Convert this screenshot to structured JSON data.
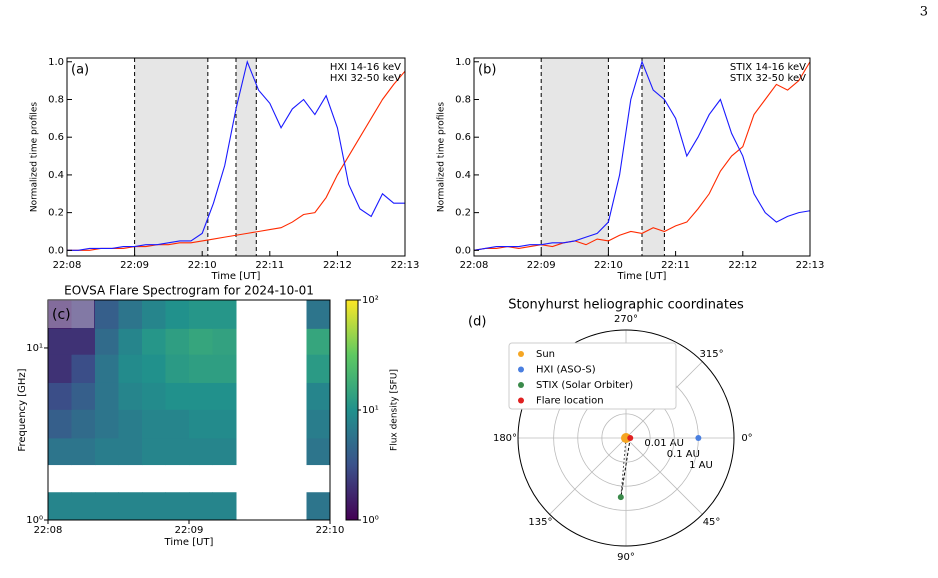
{
  "page_number": "3",
  "chart_data": [
    {
      "type": "line",
      "panel_label": "(a)",
      "x": [
        "22:08:00",
        "22:08:10",
        "22:08:20",
        "22:08:30",
        "22:08:40",
        "22:08:50",
        "22:09:00",
        "22:09:10",
        "22:09:20",
        "22:09:30",
        "22:09:40",
        "22:09:50",
        "22:10:00",
        "22:10:10",
        "22:10:20",
        "22:10:30",
        "22:10:40",
        "22:10:50",
        "22:11:00",
        "22:11:10",
        "22:11:20",
        "22:11:30",
        "22:11:40",
        "22:11:50",
        "22:12:00",
        "22:12:10",
        "22:12:20",
        "22:12:30",
        "22:12:40",
        "22:12:50",
        "22:13:00"
      ],
      "xlim": [
        "22:08",
        "22:13"
      ],
      "xticks": [
        "22:08",
        "22:09",
        "22:10",
        "22:11",
        "22:12",
        "22:13"
      ],
      "ylim": [
        -0.03,
        1.02
      ],
      "yticks": [
        {
          "value": 0,
          "label": "0.0"
        },
        0.2,
        0.4,
        0.6,
        0.8,
        {
          "value": 1,
          "label": "1.0"
        }
      ],
      "xlabel": "Time [UT]",
      "ylabel": "Normalized time profiles",
      "shaded_spans": [
        [
          "22:09:00",
          "22:10:05"
        ],
        [
          "22:10:30",
          "22:10:48"
        ]
      ],
      "series": [
        {
          "name": "HXI 14-16 keV",
          "color": "#ff2a00",
          "values": [
            0,
            0,
            0,
            0.01,
            0.01,
            0.01,
            0.02,
            0.02,
            0.03,
            0.03,
            0.04,
            0.04,
            0.05,
            0.06,
            0.07,
            0.08,
            0.09,
            0.1,
            0.11,
            0.12,
            0.15,
            0.19,
            0.2,
            0.28,
            0.4,
            0.5,
            0.6,
            0.7,
            0.8,
            0.88,
            0.95
          ]
        },
        {
          "name": "HXI 32-50 keV",
          "color": "#1a1aff",
          "values": [
            0,
            0,
            0.01,
            0.01,
            0.01,
            0.02,
            0.02,
            0.03,
            0.03,
            0.04,
            0.05,
            0.05,
            0.09,
            0.25,
            0.45,
            0.75,
            1.0,
            0.85,
            0.78,
            0.65,
            0.75,
            0.8,
            0.72,
            0.82,
            0.65,
            0.35,
            0.22,
            0.18,
            0.3,
            0.25,
            0.25
          ]
        }
      ]
    },
    {
      "type": "line",
      "panel_label": "(b)",
      "x": [
        "22:08:00",
        "22:08:10",
        "22:08:20",
        "22:08:30",
        "22:08:40",
        "22:08:50",
        "22:09:00",
        "22:09:10",
        "22:09:20",
        "22:09:30",
        "22:09:40",
        "22:09:50",
        "22:10:00",
        "22:10:10",
        "22:10:20",
        "22:10:30",
        "22:10:40",
        "22:10:50",
        "22:11:00",
        "22:11:10",
        "22:11:20",
        "22:11:30",
        "22:11:40",
        "22:11:50",
        "22:12:00",
        "22:12:10",
        "22:12:20",
        "22:12:30",
        "22:12:40",
        "22:12:50",
        "22:13:00"
      ],
      "xlim": [
        "22:08",
        "22:13"
      ],
      "xticks": [
        "22:08",
        "22:09",
        "22:10",
        "22:11",
        "22:12",
        "22:13"
      ],
      "ylim": [
        -0.03,
        1.02
      ],
      "yticks": [
        {
          "value": 0,
          "label": "0.0"
        },
        0.2,
        0.4,
        0.6,
        0.8,
        {
          "value": 1,
          "label": "1.0"
        }
      ],
      "xlabel": "Time [UT]",
      "ylabel": "Normalized time profiles",
      "shaded_spans": [
        [
          "22:09:00",
          "22:10:00"
        ],
        [
          "22:10:30",
          "22:10:50"
        ]
      ],
      "series": [
        {
          "name": "STIX 14-16 keV",
          "color": "#ff2a00",
          "values": [
            0,
            0.01,
            0.01,
            0.02,
            0.01,
            0.02,
            0.03,
            0.02,
            0.04,
            0.05,
            0.03,
            0.06,
            0.05,
            0.08,
            0.1,
            0.09,
            0.12,
            0.1,
            0.13,
            0.15,
            0.22,
            0.3,
            0.42,
            0.5,
            0.55,
            0.72,
            0.8,
            0.88,
            0.85,
            0.9,
            1.0
          ]
        },
        {
          "name": "STIX 32-50 keV",
          "color": "#1a1aff",
          "values": [
            0,
            0.01,
            0.02,
            0.02,
            0.02,
            0.03,
            0.03,
            0.04,
            0.04,
            0.05,
            0.07,
            0.09,
            0.15,
            0.4,
            0.8,
            1.0,
            0.85,
            0.8,
            0.7,
            0.5,
            0.6,
            0.72,
            0.8,
            0.62,
            0.5,
            0.3,
            0.2,
            0.15,
            0.18,
            0.2,
            0.21
          ]
        }
      ]
    },
    {
      "type": "heatmap",
      "panel_label": "(c)",
      "title": "EOVSA Flare Spectrogram for 2024-10-01",
      "xlabel": "Time [UT]",
      "ylabel": "Frequency [GHz]",
      "xlim": [
        "22:08",
        "22:10"
      ],
      "xticks": [
        "22:08",
        "22:09",
        "22:10"
      ],
      "ylim": [
        1,
        19
      ],
      "yscale": "log",
      "yticks": [
        {
          "value": 1,
          "label": "10⁰"
        },
        {
          "value": 10,
          "label": "10¹"
        }
      ],
      "x_edges": [
        "22:08:00",
        "22:08:10",
        "22:08:20",
        "22:08:30",
        "22:08:40",
        "22:08:50",
        "22:09:00",
        "22:09:10",
        "22:09:20",
        "22:09:30",
        "22:09:40",
        "22:09:50",
        "22:10:00"
      ],
      "y_edges": [
        1,
        1.45,
        2.1,
        3,
        4.4,
        6.3,
        9.2,
        13,
        19
      ],
      "z": [
        [
          8,
          8,
          8,
          8,
          8,
          8,
          8,
          8,
          null,
          null,
          null,
          6
        ],
        [
          null,
          null,
          null,
          null,
          null,
          null,
          null,
          null,
          null,
          null,
          null,
          null
        ],
        [
          6,
          6,
          7,
          7,
          8,
          8,
          8,
          8,
          null,
          null,
          null,
          6
        ],
        [
          4,
          5,
          6,
          7,
          8,
          8,
          9,
          9,
          null,
          null,
          null,
          7
        ],
        [
          3,
          4,
          6,
          8,
          9,
          10,
          10,
          10,
          null,
          null,
          null,
          8
        ],
        [
          2,
          3,
          6,
          9,
          10,
          12,
          13,
          13,
          null,
          null,
          null,
          12
        ],
        [
          2,
          2,
          5,
          8,
          11,
          13,
          15,
          14,
          null,
          null,
          null,
          15
        ],
        [
          1.5,
          2,
          4,
          6,
          8,
          10,
          11,
          11,
          null,
          null,
          null,
          6
        ]
      ],
      "colormap": "viridis",
      "clim": [
        1,
        100
      ],
      "cticks": [
        {
          "value": 1,
          "label": "10⁰"
        },
        {
          "value": 10,
          "label": "10¹"
        },
        {
          "value": 100,
          "label": "10²"
        }
      ],
      "clabel": "Flux density [SFU]"
    },
    {
      "type": "polar",
      "panel_label": "(d)",
      "title": "Stonyhurst heliographic coordinates",
      "rlim": [
        0.001,
        30
      ],
      "rscale": "log",
      "rticks": [
        {
          "value": 0.01,
          "label": "0.01 AU"
        },
        {
          "value": 0.1,
          "label": "0.1 AU"
        },
        {
          "value": 1,
          "label": "1 AU"
        }
      ],
      "thetaticks": [
        {
          "value": 0,
          "label": "0°"
        },
        {
          "value": 45,
          "label": "45°"
        },
        {
          "value": 90,
          "label": "90°"
        },
        {
          "value": 135,
          "label": "135°"
        },
        {
          "value": 180,
          "label": "180°"
        },
        {
          "value": 270,
          "label": "270°"
        },
        {
          "value": 315,
          "label": "315°"
        }
      ],
      "series": [
        {
          "name": "Sun",
          "color": "#f5a623",
          "theta": [
            0
          ],
          "r": [
            0.001
          ]
        },
        {
          "name": "HXI (ASO-S)",
          "color": "#4a7fe0",
          "theta": [
            0
          ],
          "r": [
            1
          ]
        },
        {
          "name": "STIX (Solar Orbiter)",
          "color": "#3a8a4a",
          "theta": [
            95
          ],
          "r": [
            0.29
          ]
        },
        {
          "name": "Flare location",
          "color": "#e02020",
          "theta": [
            0
          ],
          "r": [
            0.0015
          ]
        }
      ]
    }
  ]
}
